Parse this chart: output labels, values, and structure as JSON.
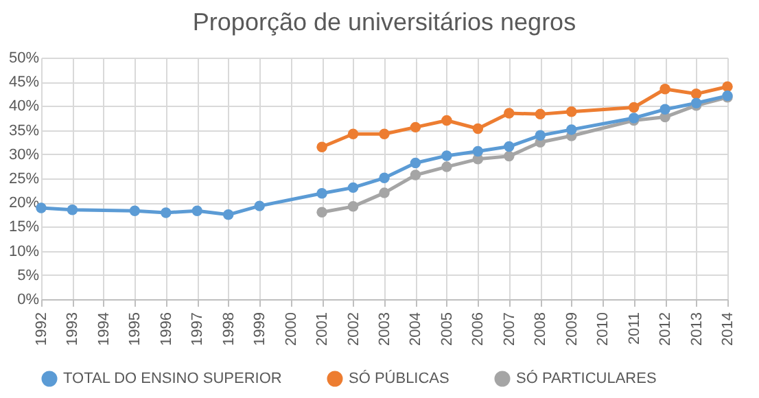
{
  "chart_data": {
    "type": "line",
    "title": "Proporção de universitários negros",
    "categories": [
      "1992",
      "1993",
      "1994",
      "1995",
      "1996",
      "1997",
      "1998",
      "1999",
      "2000",
      "2001",
      "2002",
      "2003",
      "2004",
      "2005",
      "2006",
      "2007",
      "2008",
      "2009",
      "2010",
      "2011",
      "2012",
      "2013",
      "2014"
    ],
    "series": [
      {
        "name": "TOTAL DO ENSINO SUPERIOR",
        "color": "#5b9bd5",
        "values": [
          18.9,
          18.5,
          null,
          18.3,
          17.9,
          18.3,
          17.5,
          19.3,
          null,
          21.9,
          23.1,
          25.1,
          28.2,
          29.7,
          30.6,
          31.6,
          33.9,
          35.1,
          null,
          37.5,
          39.3,
          40.6,
          42.1
        ]
      },
      {
        "name": "SÓ PÚBLICAS",
        "color": "#ed7d31",
        "values": [
          null,
          null,
          null,
          null,
          null,
          null,
          null,
          null,
          null,
          31.5,
          34.2,
          34.2,
          35.6,
          37.0,
          35.3,
          38.5,
          38.3,
          38.8,
          null,
          39.7,
          43.5,
          42.5,
          44.0
        ]
      },
      {
        "name": "SÓ PARTICULARES",
        "color": "#a5a5a5",
        "values": [
          null,
          null,
          null,
          null,
          null,
          null,
          null,
          null,
          null,
          18.0,
          19.2,
          22.0,
          25.7,
          27.4,
          29.0,
          29.6,
          32.5,
          33.8,
          null,
          37.0,
          37.7,
          40.1,
          41.8
        ]
      }
    ],
    "ylim": [
      0,
      50
    ],
    "yticks": [
      {
        "value": 0,
        "label": "0%"
      },
      {
        "value": 5,
        "label": "5%"
      },
      {
        "value": 10,
        "label": "10%"
      },
      {
        "value": 15,
        "label": "15%"
      },
      {
        "value": 20,
        "label": "20%"
      },
      {
        "value": 25,
        "label": "25%"
      },
      {
        "value": 30,
        "label": "30%"
      },
      {
        "value": 35,
        "label": "35%"
      },
      {
        "value": 40,
        "label": "40%"
      },
      {
        "value": 45,
        "label": "45%"
      },
      {
        "value": 50,
        "label": "50%"
      }
    ],
    "grid": true,
    "legend": "bottom",
    "marker": "circle",
    "line_style": "solid"
  }
}
